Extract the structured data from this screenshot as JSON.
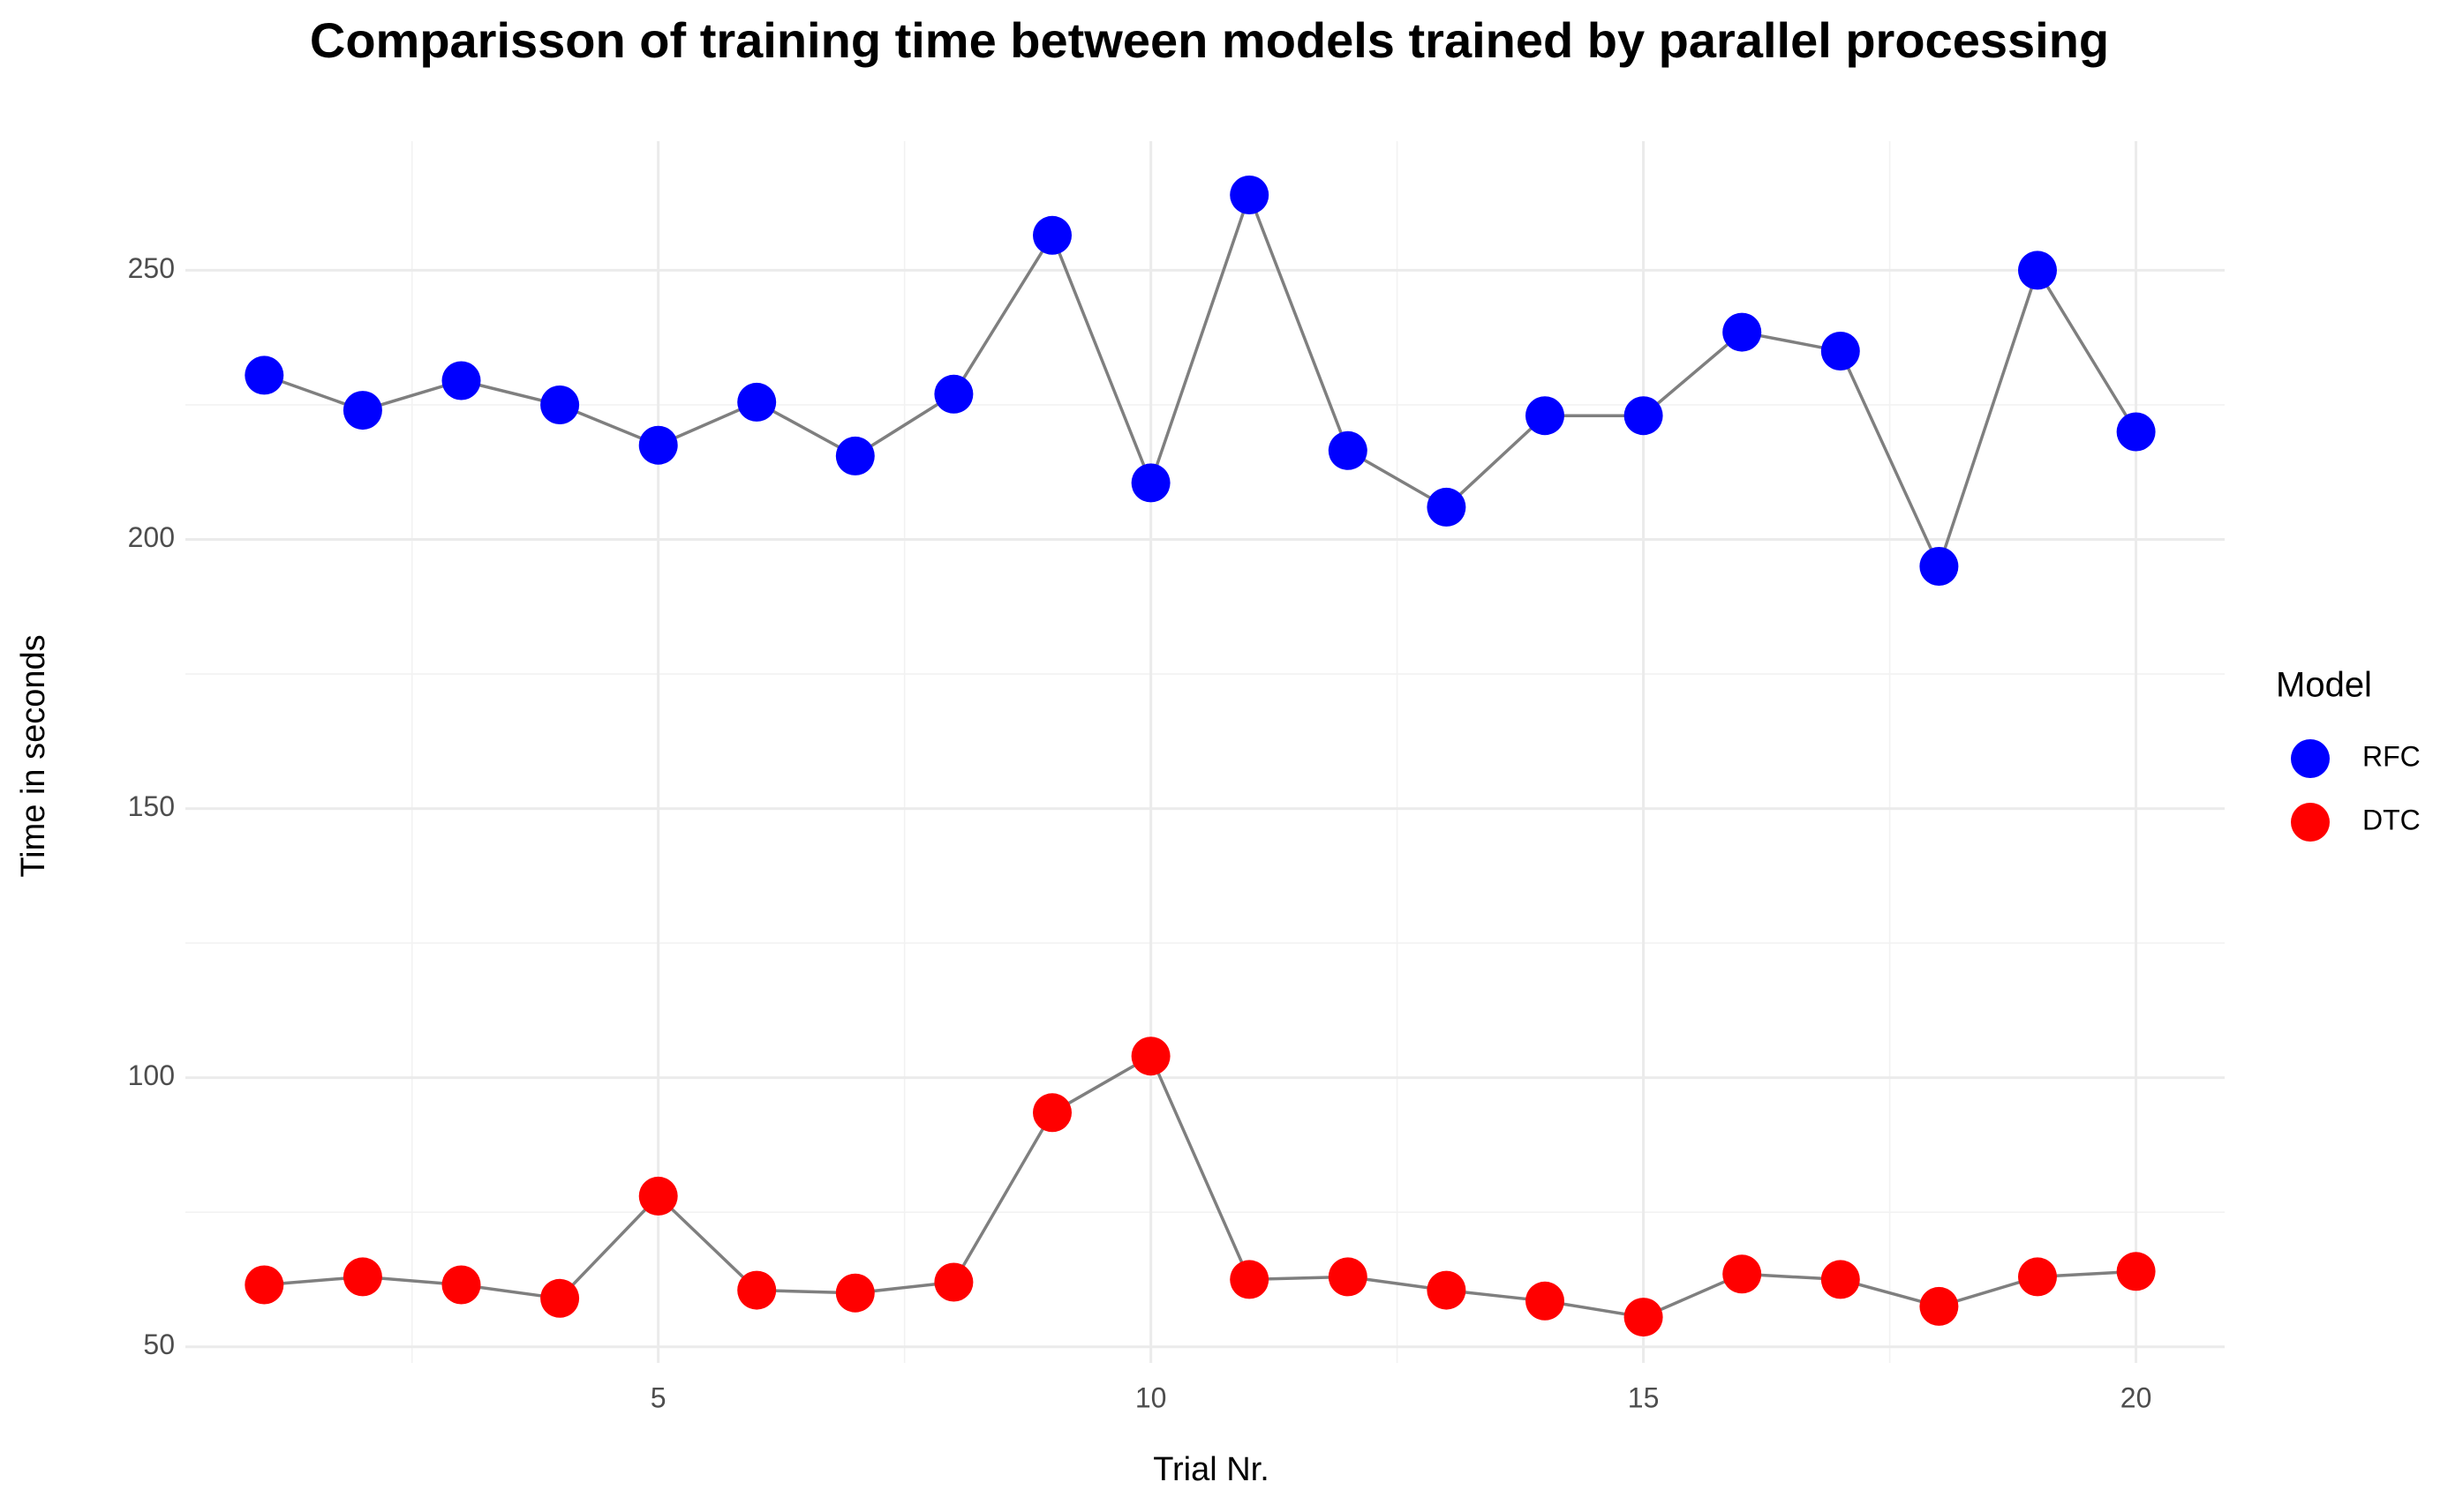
{
  "chart_data": {
    "type": "line",
    "title": "Comparisson of training time between models trained by parallel processing",
    "xlabel": "Trial Nr.",
    "ylabel": "Time in seconds",
    "x": [
      1,
      2,
      3,
      4,
      5,
      6,
      7,
      8,
      9,
      10,
      11,
      12,
      13,
      14,
      15,
      16,
      17,
      18,
      19,
      20
    ],
    "xlim": [
      0.2,
      20.9
    ],
    "ylim": [
      47,
      274
    ],
    "x_ticks": [
      5,
      10,
      15,
      20
    ],
    "y_ticks": [
      50,
      100,
      150,
      200,
      250
    ],
    "x_minor": [
      2.5,
      7.5,
      12.5,
      17.5
    ],
    "y_minor": [
      75,
      125,
      175,
      225
    ],
    "grid": true,
    "line_color": "#7f7f7f",
    "legend": {
      "title": "Model",
      "position": "right"
    },
    "series": [
      {
        "name": "RFC",
        "color": "#0000ff",
        "values": [
          230.5,
          224,
          229.5,
          225,
          217.5,
          225.5,
          215.5,
          227,
          256.5,
          210.5,
          264,
          216.5,
          206,
          223,
          223,
          238.5,
          235,
          195,
          250,
          220
        ]
      },
      {
        "name": "DTC",
        "color": "#ff0000",
        "values": [
          61.5,
          63,
          61.5,
          59,
          78,
          60.5,
          60,
          62,
          93.5,
          104,
          62.5,
          63,
          60.5,
          58.5,
          55.5,
          63.5,
          62.5,
          57.5,
          63,
          64
        ]
      }
    ]
  }
}
